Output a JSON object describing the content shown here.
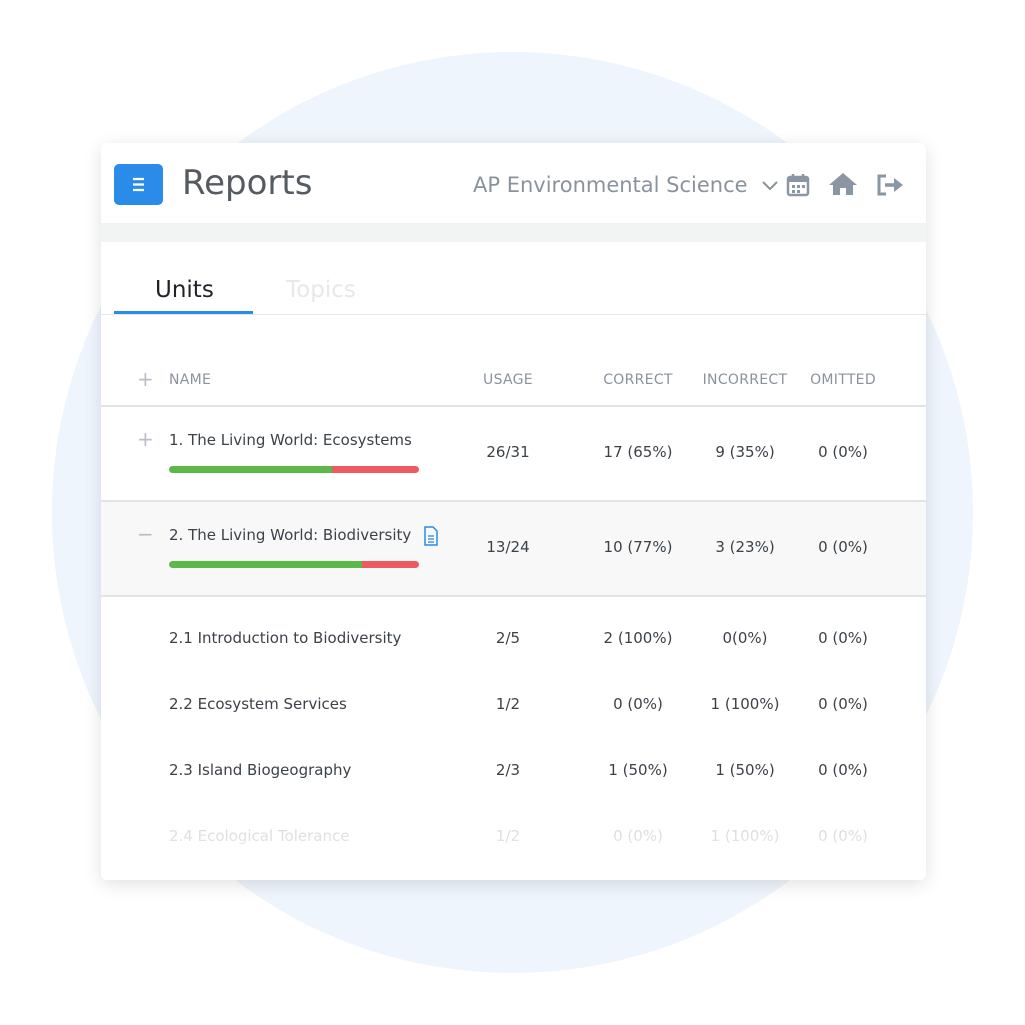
{
  "header": {
    "title": "Reports",
    "course": "AP Environmental Science"
  },
  "tabs": [
    "Units",
    "Topics"
  ],
  "table": {
    "columns": [
      "NAME",
      "USAGE",
      "CORRECT",
      "INCORRECT",
      "OMITTED"
    ],
    "units": [
      {
        "name": "1.  The Living World: Ecosystems",
        "usage": "26/31",
        "correct": "17 (65%)",
        "incorrect": "9 (35%)",
        "omitted": "0 (0%)",
        "bar": [
          65,
          35
        ]
      },
      {
        "name": "2. The Living World: Biodiversity",
        "usage": "13/24",
        "correct": "10 (77%)",
        "incorrect": "3 (23%)",
        "omitted": "0 (0%)",
        "bar": [
          77,
          23
        ]
      }
    ],
    "topics": [
      {
        "name": "2.1 Introduction to Biodiversity",
        "usage": "2/5",
        "correct": "2 (100%)",
        "incorrect": "0(0%)",
        "omitted": "0 (0%)"
      },
      {
        "name": "2.2 Ecosystem Services",
        "usage": "1/2",
        "correct": "0 (0%)",
        "incorrect": "1 (100%)",
        "omitted": "0 (0%)"
      },
      {
        "name": "2.3 Island Biogeography",
        "usage": "2/3",
        "correct": "1 (50%)",
        "incorrect": "1 (50%)",
        "omitted": "0 (0%)"
      },
      {
        "name": "2.4 Ecological Tolerance",
        "usage": "1/2",
        "correct": "0 (0%)",
        "incorrect": "1 (100%)",
        "omitted": "0 (0%)"
      }
    ]
  }
}
